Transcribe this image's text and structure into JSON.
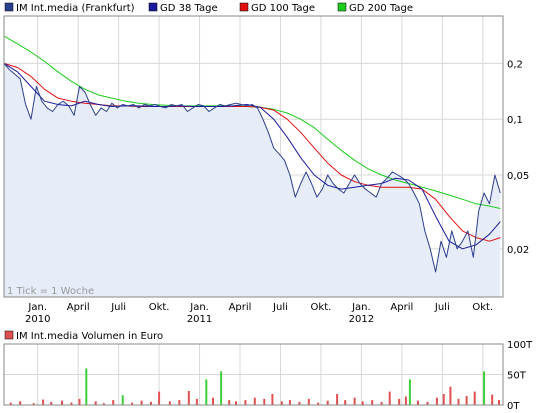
{
  "legend_top": [
    {
      "label": "IM Int.media (Frankfurt)",
      "color": "#2b3f8c"
    },
    {
      "label": "GD 38 Tage",
      "color": "#1a1a9c"
    },
    {
      "label": "GD 100 Tage",
      "color": "#e01010"
    },
    {
      "label": "GD 200 Tage",
      "color": "#1ccb1c"
    }
  ],
  "legend_bottom": {
    "label": "IM Int.media Volumen in Euro",
    "color": "#e05050"
  },
  "tick_note": "1 Tick = 1 Woche",
  "chart_data": [
    {
      "type": "line",
      "log_scale": true,
      "x_ticks": [
        {
          "label": "Jan.",
          "year": "2010",
          "t": 0.5
        },
        {
          "label": "April",
          "t": 3.5
        },
        {
          "label": "Juli",
          "t": 6.5
        },
        {
          "label": "Okt.",
          "t": 9.5
        },
        {
          "label": "Jan.",
          "year": "2011",
          "t": 12.5
        },
        {
          "label": "April",
          "t": 15.5
        },
        {
          "label": "Juli",
          "t": 18.5
        },
        {
          "label": "Okt.",
          "t": 21.5
        },
        {
          "label": "Jan.",
          "year": "2012",
          "t": 24.5
        },
        {
          "label": "April",
          "t": 27.5
        },
        {
          "label": "Juli",
          "t": 30.5
        },
        {
          "label": "Okt.",
          "t": 33.5
        }
      ],
      "y_ticks": [
        {
          "label": "0,2",
          "v": 0.2
        },
        {
          "label": "0,1",
          "v": 0.1
        },
        {
          "label": "0,05",
          "v": 0.05
        },
        {
          "label": "0,02",
          "v": 0.02
        }
      ],
      "x_range_months": [
        -2.0,
        35.0
      ],
      "y_range": [
        0.011,
        0.36
      ],
      "grid": true,
      "series": [
        {
          "name": "IM Int.media (Frankfurt)",
          "color": "#2b3f8c",
          "fill": "#e6ecf8",
          "x": [
            -2.0,
            -1.6,
            -1.2,
            -0.8,
            -0.4,
            0.0,
            0.4,
            0.8,
            1.2,
            1.6,
            2.0,
            2.4,
            2.8,
            3.2,
            3.6,
            4.0,
            4.4,
            4.8,
            5.2,
            5.6,
            6.0,
            6.4,
            6.8,
            7.2,
            7.6,
            8.0,
            8.4,
            8.8,
            9.2,
            9.6,
            10.0,
            10.4,
            10.8,
            11.2,
            11.6,
            12.0,
            12.4,
            12.8,
            13.2,
            13.6,
            14.0,
            14.4,
            14.8,
            15.2,
            15.6,
            16.0,
            16.4,
            16.8,
            17.2,
            17.6,
            18.0,
            18.4,
            18.8,
            19.2,
            19.6,
            20.0,
            20.4,
            20.8,
            21.2,
            21.6,
            22.0,
            22.4,
            22.8,
            23.2,
            23.6,
            24.0,
            24.4,
            24.8,
            25.2,
            25.6,
            26.0,
            26.4,
            26.8,
            27.2,
            27.6,
            28.0,
            28.4,
            28.8,
            29.2,
            29.6,
            30.0,
            30.4,
            30.8,
            31.2,
            31.6,
            32.0,
            32.4,
            32.8,
            33.2,
            33.6,
            34.0,
            34.4,
            34.8
          ],
          "y": [
            0.2,
            0.185,
            0.175,
            0.165,
            0.12,
            0.1,
            0.15,
            0.125,
            0.115,
            0.11,
            0.12,
            0.125,
            0.118,
            0.105,
            0.15,
            0.14,
            0.12,
            0.105,
            0.115,
            0.11,
            0.122,
            0.115,
            0.12,
            0.118,
            0.12,
            0.115,
            0.12,
            0.118,
            0.12,
            0.117,
            0.115,
            0.12,
            0.118,
            0.12,
            0.11,
            0.115,
            0.12,
            0.118,
            0.11,
            0.115,
            0.12,
            0.118,
            0.12,
            0.122,
            0.12,
            0.118,
            0.12,
            0.115,
            0.1,
            0.085,
            0.07,
            0.065,
            0.06,
            0.05,
            0.038,
            0.045,
            0.052,
            0.045,
            0.038,
            0.042,
            0.05,
            0.045,
            0.042,
            0.04,
            0.045,
            0.05,
            0.045,
            0.042,
            0.04,
            0.038,
            0.045,
            0.048,
            0.052,
            0.05,
            0.048,
            0.045,
            0.04,
            0.035,
            0.025,
            0.02,
            0.015,
            0.022,
            0.018,
            0.025,
            0.02,
            0.022,
            0.025,
            0.018,
            0.032,
            0.04,
            0.035,
            0.05,
            0.04
          ]
        },
        {
          "name": "GD 38 Tage",
          "color": "#1a1a9c",
          "x": [
            -2.0,
            -1.0,
            0.0,
            1.0,
            2.0,
            3.0,
            4.0,
            5.0,
            6.0,
            7.0,
            8.0,
            9.0,
            10.0,
            11.0,
            12.0,
            13.0,
            14.0,
            15.0,
            16.0,
            17.0,
            18.0,
            19.0,
            20.0,
            21.0,
            22.0,
            23.0,
            24.0,
            25.0,
            26.0,
            27.0,
            28.0,
            29.0,
            30.0,
            31.0,
            32.0,
            33.0,
            34.0,
            34.8
          ],
          "y": [
            0.2,
            0.18,
            0.15,
            0.125,
            0.12,
            0.118,
            0.125,
            0.12,
            0.117,
            0.118,
            0.118,
            0.117,
            0.117,
            0.118,
            0.117,
            0.117,
            0.117,
            0.118,
            0.12,
            0.116,
            0.1,
            0.08,
            0.062,
            0.05,
            0.044,
            0.042,
            0.043,
            0.044,
            0.045,
            0.048,
            0.047,
            0.042,
            0.03,
            0.022,
            0.02,
            0.021,
            0.024,
            0.028
          ]
        },
        {
          "name": "GD 100 Tage",
          "color": "#e01010",
          "x": [
            -2.0,
            -1.0,
            0.0,
            1.0,
            2.0,
            3.0,
            4.0,
            5.0,
            6.0,
            7.0,
            8.0,
            9.0,
            10.0,
            11.0,
            12.0,
            13.0,
            14.0,
            15.0,
            16.0,
            17.0,
            18.0,
            19.0,
            20.0,
            21.0,
            22.0,
            23.0,
            24.0,
            25.0,
            26.0,
            27.0,
            28.0,
            29.0,
            30.0,
            31.0,
            32.0,
            33.0,
            34.0,
            34.8
          ],
          "y": [
            0.2,
            0.19,
            0.17,
            0.145,
            0.13,
            0.125,
            0.122,
            0.12,
            0.118,
            0.118,
            0.117,
            0.117,
            0.117,
            0.117,
            0.117,
            0.117,
            0.117,
            0.117,
            0.117,
            0.116,
            0.112,
            0.1,
            0.085,
            0.07,
            0.058,
            0.05,
            0.046,
            0.044,
            0.043,
            0.043,
            0.043,
            0.042,
            0.037,
            0.03,
            0.025,
            0.023,
            0.022,
            0.023
          ]
        },
        {
          "name": "GD 200 Tage",
          "color": "#1ccb1c",
          "x": [
            -2.0,
            -1.0,
            0.0,
            1.0,
            2.0,
            3.0,
            4.0,
            5.0,
            6.0,
            7.0,
            8.0,
            9.0,
            10.0,
            11.0,
            12.0,
            13.0,
            14.0,
            15.0,
            16.0,
            17.0,
            18.0,
            19.0,
            20.0,
            21.0,
            22.0,
            23.0,
            24.0,
            25.0,
            26.0,
            27.0,
            28.0,
            29.0,
            30.0,
            31.0,
            32.0,
            33.0,
            34.0,
            34.8
          ],
          "y": [
            0.28,
            0.255,
            0.23,
            0.205,
            0.18,
            0.16,
            0.145,
            0.135,
            0.13,
            0.125,
            0.122,
            0.12,
            0.119,
            0.118,
            0.118,
            0.118,
            0.118,
            0.118,
            0.117,
            0.116,
            0.113,
            0.108,
            0.1,
            0.09,
            0.078,
            0.068,
            0.06,
            0.054,
            0.05,
            0.047,
            0.045,
            0.043,
            0.041,
            0.039,
            0.037,
            0.035,
            0.034,
            0.033
          ]
        }
      ]
    },
    {
      "type": "bar",
      "y_ticks": [
        {
          "label": "100T",
          "v": 100
        },
        {
          "label": "50T",
          "v": 50
        },
        {
          "label": "0T",
          "v": 0
        }
      ],
      "y_range": [
        0,
        100
      ],
      "bars": [
        {
          "t": -1.5,
          "v": 4,
          "c": "r"
        },
        {
          "t": -0.8,
          "v": 6,
          "c": "r"
        },
        {
          "t": 0.2,
          "v": 3,
          "c": "r"
        },
        {
          "t": 0.9,
          "v": 9,
          "c": "r"
        },
        {
          "t": 1.5,
          "v": 5,
          "c": "r"
        },
        {
          "t": 2.3,
          "v": 7,
          "c": "r"
        },
        {
          "t": 3.0,
          "v": 4,
          "c": "r"
        },
        {
          "t": 3.6,
          "v": 10,
          "c": "r"
        },
        {
          "t": 4.1,
          "v": 60,
          "c": "g"
        },
        {
          "t": 4.8,
          "v": 6,
          "c": "r"
        },
        {
          "t": 5.4,
          "v": 3,
          "c": "r"
        },
        {
          "t": 6.1,
          "v": 8,
          "c": "r"
        },
        {
          "t": 6.8,
          "v": 16,
          "c": "g"
        },
        {
          "t": 7.5,
          "v": 4,
          "c": "r"
        },
        {
          "t": 8.2,
          "v": 7,
          "c": "r"
        },
        {
          "t": 8.9,
          "v": 5,
          "c": "r"
        },
        {
          "t": 9.5,
          "v": 22,
          "c": "r"
        },
        {
          "t": 10.3,
          "v": 6,
          "c": "r"
        },
        {
          "t": 11.0,
          "v": 8,
          "c": "r"
        },
        {
          "t": 11.7,
          "v": 23,
          "c": "r"
        },
        {
          "t": 12.3,
          "v": 10,
          "c": "r"
        },
        {
          "t": 13.0,
          "v": 42,
          "c": "g"
        },
        {
          "t": 13.5,
          "v": 12,
          "c": "r"
        },
        {
          "t": 14.1,
          "v": 55,
          "c": "g"
        },
        {
          "t": 14.7,
          "v": 8,
          "c": "r"
        },
        {
          "t": 15.2,
          "v": 6,
          "c": "r"
        },
        {
          "t": 15.9,
          "v": 8,
          "c": "r"
        },
        {
          "t": 16.6,
          "v": 12,
          "c": "r"
        },
        {
          "t": 17.3,
          "v": 10,
          "c": "r"
        },
        {
          "t": 17.9,
          "v": 18,
          "c": "r"
        },
        {
          "t": 18.6,
          "v": 6,
          "c": "r"
        },
        {
          "t": 19.2,
          "v": 8,
          "c": "r"
        },
        {
          "t": 19.9,
          "v": 5,
          "c": "r"
        },
        {
          "t": 20.6,
          "v": 10,
          "c": "r"
        },
        {
          "t": 21.3,
          "v": 4,
          "c": "r"
        },
        {
          "t": 22.0,
          "v": 7,
          "c": "r"
        },
        {
          "t": 22.7,
          "v": 18,
          "c": "r"
        },
        {
          "t": 23.3,
          "v": 8,
          "c": "r"
        },
        {
          "t": 24.0,
          "v": 12,
          "c": "r"
        },
        {
          "t": 24.6,
          "v": 6,
          "c": "r"
        },
        {
          "t": 25.3,
          "v": 8,
          "c": "r"
        },
        {
          "t": 26.0,
          "v": 5,
          "c": "r"
        },
        {
          "t": 26.6,
          "v": 22,
          "c": "r"
        },
        {
          "t": 27.3,
          "v": 10,
          "c": "r"
        },
        {
          "t": 27.8,
          "v": 14,
          "c": "r"
        },
        {
          "t": 28.1,
          "v": 42,
          "c": "g"
        },
        {
          "t": 28.7,
          "v": 7,
          "c": "r"
        },
        {
          "t": 29.4,
          "v": 5,
          "c": "r"
        },
        {
          "t": 30.1,
          "v": 12,
          "c": "r"
        },
        {
          "t": 30.6,
          "v": 18,
          "c": "r"
        },
        {
          "t": 31.1,
          "v": 30,
          "c": "r"
        },
        {
          "t": 31.7,
          "v": 10,
          "c": "r"
        },
        {
          "t": 32.3,
          "v": 15,
          "c": "r"
        },
        {
          "t": 32.9,
          "v": 22,
          "c": "r"
        },
        {
          "t": 33.6,
          "v": 55,
          "c": "g"
        },
        {
          "t": 34.2,
          "v": 17,
          "c": "r"
        },
        {
          "t": 34.7,
          "v": 8,
          "c": "r"
        }
      ]
    }
  ]
}
